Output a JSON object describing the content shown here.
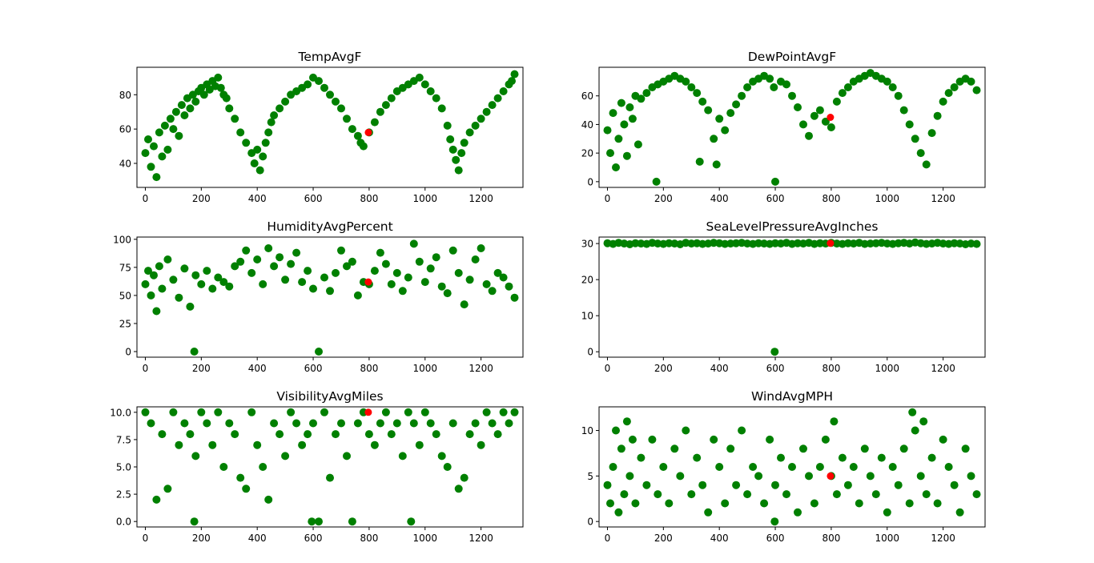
{
  "figure": {
    "background": "#ffffff",
    "point_color": "#008000",
    "highlight_color": "#ff0000"
  },
  "chart_data": [
    {
      "type": "scatter",
      "title": "TempAvgF",
      "xlabel": "",
      "ylabel": "",
      "xlim": [
        -30,
        1350
      ],
      "ylim": [
        26,
        96
      ],
      "xticks": [
        0,
        200,
        400,
        600,
        800,
        1000,
        1200
      ],
      "yticks": [
        40,
        60,
        80
      ],
      "grid": false,
      "series": [
        {
          "role": "data",
          "color": "#008000",
          "x": [
            0,
            10,
            20,
            30,
            40,
            50,
            60,
            70,
            80,
            90,
            100,
            110,
            120,
            130,
            140,
            150,
            160,
            170,
            180,
            190,
            200,
            210,
            220,
            230,
            240,
            250,
            260,
            270,
            280,
            290,
            300,
            320,
            340,
            360,
            380,
            390,
            400,
            410,
            420,
            430,
            440,
            450,
            460,
            480,
            500,
            520,
            540,
            560,
            580,
            600,
            620,
            640,
            660,
            680,
            700,
            720,
            740,
            760,
            770,
            780,
            800,
            820,
            840,
            860,
            880,
            900,
            920,
            940,
            960,
            980,
            1000,
            1020,
            1040,
            1060,
            1080,
            1090,
            1100,
            1110,
            1120,
            1130,
            1140,
            1160,
            1180,
            1200,
            1220,
            1240,
            1260,
            1280,
            1300,
            1310,
            1320
          ],
          "y": [
            46,
            54,
            38,
            50,
            32,
            58,
            44,
            62,
            48,
            66,
            60,
            70,
            56,
            74,
            68,
            78,
            72,
            80,
            76,
            82,
            84,
            80,
            86,
            83,
            88,
            85,
            90,
            84,
            80,
            78,
            72,
            66,
            58,
            52,
            46,
            40,
            48,
            36,
            44,
            52,
            58,
            64,
            68,
            72,
            76,
            80,
            82,
            84,
            86,
            90,
            88,
            84,
            80,
            76,
            72,
            66,
            60,
            56,
            52,
            50,
            58,
            64,
            70,
            74,
            78,
            82,
            84,
            86,
            88,
            90,
            86,
            82,
            78,
            72,
            62,
            54,
            48,
            42,
            36,
            46,
            52,
            58,
            62,
            66,
            70,
            74,
            78,
            82,
            86,
            88,
            92
          ]
        },
        {
          "role": "highlight",
          "color": "#ff0000",
          "x": [
            797
          ],
          "y": [
            58
          ]
        }
      ]
    },
    {
      "type": "scatter",
      "title": "DewPointAvgF",
      "xlabel": "",
      "ylabel": "",
      "xlim": [
        -30,
        1350
      ],
      "ylim": [
        -4,
        80
      ],
      "xticks": [
        0,
        200,
        400,
        600,
        800,
        1000,
        1200
      ],
      "yticks": [
        0,
        20,
        40,
        60
      ],
      "grid": false,
      "series": [
        {
          "role": "data",
          "color": "#008000",
          "x": [
            0,
            10,
            20,
            30,
            40,
            50,
            60,
            70,
            80,
            90,
            100,
            110,
            120,
            140,
            160,
            175,
            180,
            200,
            220,
            240,
            260,
            280,
            300,
            320,
            330,
            340,
            360,
            380,
            390,
            400,
            420,
            440,
            460,
            480,
            500,
            520,
            540,
            560,
            580,
            595,
            600,
            620,
            640,
            660,
            680,
            700,
            720,
            740,
            760,
            780,
            800,
            820,
            840,
            860,
            880,
            900,
            920,
            940,
            960,
            980,
            1000,
            1020,
            1040,
            1060,
            1080,
            1100,
            1120,
            1140,
            1160,
            1180,
            1200,
            1220,
            1240,
            1260,
            1280,
            1300,
            1320
          ],
          "y": [
            36,
            20,
            48,
            10,
            30,
            55,
            40,
            18,
            52,
            44,
            60,
            26,
            58,
            62,
            66,
            0,
            68,
            70,
            72,
            74,
            72,
            70,
            66,
            62,
            14,
            56,
            50,
            30,
            12,
            44,
            36,
            48,
            54,
            60,
            66,
            70,
            72,
            74,
            72,
            66,
            0,
            70,
            68,
            60,
            52,
            40,
            32,
            46,
            50,
            42,
            38,
            56,
            62,
            66,
            70,
            72,
            74,
            76,
            74,
            72,
            70,
            66,
            60,
            50,
            40,
            30,
            20,
            12,
            34,
            46,
            56,
            62,
            66,
            70,
            72,
            70,
            64
          ]
        },
        {
          "role": "highlight",
          "color": "#ff0000",
          "x": [
            797
          ],
          "y": [
            45
          ]
        }
      ]
    },
    {
      "type": "scatter",
      "title": "HumidityAvgPercent",
      "xlabel": "",
      "ylabel": "",
      "xlim": [
        -30,
        1350
      ],
      "ylim": [
        -5,
        102
      ],
      "xticks": [
        0,
        200,
        400,
        600,
        800,
        1000,
        1200
      ],
      "yticks": [
        0,
        25,
        50,
        75,
        100
      ],
      "grid": false,
      "series": [
        {
          "role": "data",
          "color": "#008000",
          "x": [
            0,
            10,
            20,
            30,
            40,
            50,
            60,
            80,
            100,
            120,
            140,
            160,
            175,
            180,
            200,
            220,
            240,
            260,
            280,
            300,
            320,
            340,
            360,
            380,
            400,
            420,
            440,
            460,
            480,
            500,
            520,
            540,
            560,
            580,
            600,
            620,
            640,
            660,
            680,
            700,
            720,
            740,
            760,
            780,
            800,
            820,
            840,
            860,
            880,
            900,
            920,
            940,
            960,
            980,
            1000,
            1020,
            1040,
            1060,
            1080,
            1100,
            1120,
            1140,
            1160,
            1180,
            1200,
            1220,
            1240,
            1260,
            1280,
            1300,
            1320
          ],
          "y": [
            60,
            72,
            50,
            68,
            36,
            76,
            56,
            82,
            64,
            48,
            74,
            40,
            0,
            68,
            60,
            72,
            56,
            66,
            62,
            58,
            76,
            80,
            90,
            70,
            82,
            60,
            92,
            76,
            84,
            64,
            78,
            88,
            62,
            72,
            56,
            0,
            66,
            54,
            70,
            90,
            76,
            80,
            50,
            62,
            60,
            72,
            88,
            78,
            60,
            70,
            54,
            66,
            96,
            80,
            62,
            74,
            84,
            58,
            52,
            90,
            70,
            42,
            64,
            82,
            92,
            60,
            54,
            70,
            66,
            58,
            48
          ]
        },
        {
          "role": "highlight",
          "color": "#ff0000",
          "x": [
            797
          ],
          "y": [
            62
          ]
        }
      ]
    },
    {
      "type": "scatter",
      "title": "SeaLevelPressureAvgInches",
      "xlabel": "",
      "ylabel": "",
      "xlim": [
        -30,
        1350
      ],
      "ylim": [
        -1.5,
        31.8
      ],
      "xticks": [
        0,
        200,
        400,
        600,
        800,
        1000,
        1200
      ],
      "yticks": [
        0,
        10,
        20,
        30
      ],
      "grid": false,
      "series": [
        {
          "role": "data",
          "color": "#008000",
          "x": [
            0,
            20,
            40,
            60,
            80,
            100,
            120,
            140,
            160,
            180,
            200,
            220,
            240,
            260,
            280,
            300,
            320,
            340,
            360,
            380,
            400,
            420,
            440,
            460,
            480,
            500,
            520,
            540,
            560,
            580,
            598,
            600,
            620,
            640,
            660,
            680,
            700,
            720,
            740,
            760,
            780,
            800,
            820,
            840,
            860,
            880,
            900,
            920,
            940,
            960,
            980,
            1000,
            1020,
            1040,
            1060,
            1080,
            1100,
            1120,
            1140,
            1160,
            1180,
            1200,
            1220,
            1240,
            1260,
            1280,
            1300,
            1320
          ],
          "y": [
            30.1,
            29.9,
            30.2,
            30.0,
            29.8,
            30.1,
            30.0,
            29.9,
            30.2,
            30.0,
            29.9,
            30.1,
            30.0,
            29.8,
            30.2,
            30.0,
            30.1,
            29.9,
            30.0,
            30.2,
            30.1,
            29.9,
            30.0,
            30.1,
            30.2,
            30.0,
            29.9,
            30.1,
            30.0,
            29.9,
            0,
            30.1,
            30.0,
            30.2,
            29.9,
            30.1,
            30.0,
            30.2,
            29.9,
            30.1,
            30.0,
            30.2,
            30.0,
            29.9,
            30.1,
            30.0,
            30.2,
            29.9,
            30.0,
            30.1,
            30.2,
            30.0,
            29.9,
            30.1,
            30.2,
            30.0,
            30.3,
            30.1,
            29.9,
            30.0,
            30.2,
            30.0,
            29.9,
            30.1,
            30.0,
            29.8,
            30.0,
            29.9
          ]
        },
        {
          "role": "highlight",
          "color": "#ff0000",
          "x": [
            797
          ],
          "y": [
            30.1
          ]
        }
      ]
    },
    {
      "type": "scatter",
      "title": "VisibilityAvgMiles",
      "xlabel": "",
      "ylabel": "",
      "xlim": [
        -30,
        1350
      ],
      "ylim": [
        -0.5,
        10.5
      ],
      "xticks": [
        0,
        200,
        400,
        600,
        800,
        1000,
        1200
      ],
      "yticks": [
        0.0,
        2.5,
        5.0,
        7.5,
        10.0
      ],
      "tick_labels_y": [
        "0.0",
        "2.5",
        "5.0",
        "7.5",
        "10.0"
      ],
      "grid": false,
      "series": [
        {
          "role": "data",
          "color": "#008000",
          "x": [
            0,
            20,
            40,
            60,
            80,
            100,
            120,
            140,
            160,
            175,
            180,
            200,
            220,
            240,
            260,
            280,
            300,
            320,
            340,
            360,
            380,
            400,
            420,
            440,
            460,
            480,
            500,
            520,
            540,
            560,
            580,
            595,
            600,
            620,
            640,
            660,
            680,
            700,
            720,
            740,
            760,
            780,
            800,
            820,
            840,
            860,
            880,
            900,
            920,
            940,
            950,
            960,
            980,
            1000,
            1020,
            1040,
            1060,
            1080,
            1100,
            1120,
            1140,
            1160,
            1180,
            1200,
            1220,
            1240,
            1260,
            1280,
            1300,
            1320
          ],
          "y": [
            10,
            9,
            2,
            8,
            3,
            10,
            7,
            9,
            8,
            0,
            6,
            10,
            9,
            7,
            10,
            5,
            9,
            8,
            4,
            3,
            10,
            7,
            5,
            2,
            9,
            8,
            6,
            10,
            9,
            7,
            8,
            0,
            9,
            0,
            10,
            4,
            8,
            9,
            6,
            0,
            9,
            10,
            8,
            7,
            9,
            10,
            8,
            9,
            6,
            10,
            0,
            9,
            7,
            10,
            9,
            8,
            6,
            5,
            9,
            3,
            4,
            8,
            9,
            7,
            10,
            9,
            8,
            10,
            9,
            10
          ]
        },
        {
          "role": "highlight",
          "color": "#ff0000",
          "x": [
            797
          ],
          "y": [
            10
          ]
        }
      ]
    },
    {
      "type": "scatter",
      "title": "WindAvgMPH",
      "xlabel": "",
      "ylabel": "",
      "xlim": [
        -30,
        1350
      ],
      "ylim": [
        -0.6,
        12.6
      ],
      "xticks": [
        0,
        200,
        400,
        600,
        800,
        1000,
        1200
      ],
      "yticks": [
        0,
        5,
        10
      ],
      "grid": false,
      "series": [
        {
          "role": "data",
          "color": "#008000",
          "x": [
            0,
            10,
            20,
            30,
            40,
            50,
            60,
            70,
            80,
            90,
            100,
            120,
            140,
            160,
            180,
            200,
            220,
            240,
            260,
            280,
            300,
            320,
            340,
            360,
            380,
            400,
            420,
            440,
            460,
            480,
            500,
            520,
            540,
            560,
            580,
            598,
            600,
            620,
            640,
            660,
            680,
            700,
            720,
            740,
            760,
            780,
            800,
            810,
            820,
            840,
            860,
            880,
            900,
            920,
            940,
            960,
            980,
            1000,
            1020,
            1040,
            1060,
            1080,
            1090,
            1100,
            1120,
            1130,
            1140,
            1160,
            1180,
            1200,
            1220,
            1240,
            1260,
            1280,
            1300,
            1320
          ],
          "y": [
            4,
            2,
            6,
            10,
            1,
            8,
            3,
            11,
            5,
            9,
            2,
            7,
            4,
            9,
            3,
            6,
            2,
            8,
            5,
            10,
            3,
            7,
            4,
            1,
            9,
            6,
            2,
            8,
            4,
            10,
            3,
            6,
            5,
            2,
            9,
            0,
            4,
            7,
            3,
            6,
            1,
            8,
            5,
            2,
            6,
            9,
            5,
            11,
            3,
            7,
            4,
            6,
            2,
            8,
            5,
            3,
            7,
            1,
            6,
            4,
            8,
            2,
            12,
            10,
            5,
            11,
            3,
            7,
            2,
            9,
            6,
            4,
            1,
            8,
            5,
            3
          ]
        },
        {
          "role": "highlight",
          "color": "#ff0000",
          "x": [
            797
          ],
          "y": [
            5
          ]
        }
      ]
    }
  ]
}
